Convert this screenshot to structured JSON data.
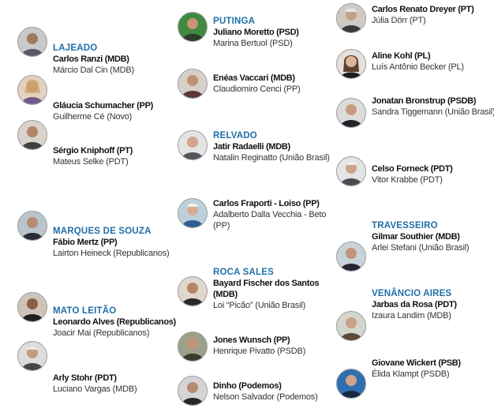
{
  "columns": [
    {
      "entries": [
        {
          "city": "LAJEADO",
          "mayor": "Carlos Ranzi (MDB)",
          "vice": "Márcio Dal Cin (MDB)"
        },
        {
          "city": "",
          "mayor": "Gláucia Schumacher (PP)",
          "vice": "Guilherme Cé (Novo)"
        },
        {
          "city": "",
          "mayor": "Sérgio Kniphoff (PT)",
          "vice": "Mateus Selke (PDT)"
        },
        {
          "city": "MARQUES DE SOUZA",
          "mayor": "Fábio Mertz (PP)",
          "vice": "Lairton Heineck (Republicanos)"
        },
        {
          "city": "MATO LEITÃO",
          "mayor": "Leonardo Alves (Republicanos)",
          "vice": "Joacir Mai (Republicanos)"
        },
        {
          "city": "",
          "mayor": "Arly Stohr (PDT)",
          "vice": "Luciano Vargas (MDB)"
        }
      ]
    },
    {
      "entries": [
        {
          "city": "PUTINGA",
          "mayor": "Juliano Moretto (PSD)",
          "vice": "Marina Bertuol (PSD)"
        },
        {
          "city": "",
          "mayor": "Enéas Vaccari (MDB)",
          "vice": "Claudiomiro Cenci (PP)"
        },
        {
          "city": "RELVADO",
          "mayor": "Jatir Radaelli (MDB)",
          "vice": "Natalin Reginatto (União Brasil)"
        },
        {
          "city": "",
          "mayor": "Carlos Fraporti - Loiso (PP)",
          "vice": "Adalberto Dalla Vecchia - Beto (PP)"
        },
        {
          "city": "ROCA SALES",
          "mayor": "Bayard Fischer dos Santos (MDB)",
          "vice": "Loi “Picão” (União Brasil)"
        },
        {
          "city": "",
          "mayor": "Jones Wunsch (PP)",
          "vice": "Henrique Pivatto (PSDB)"
        },
        {
          "city": "",
          "mayor": "Dinho (Podemos)",
          "vice": "Nelson Salvador (Podemos)"
        }
      ]
    },
    {
      "entries": [
        {
          "city": "",
          "mayor": "Carlos Renato Dreyer (PT)",
          "vice": "Júlia Dörr (PT)"
        },
        {
          "city": "",
          "mayor": "Aline Kohl (PL)",
          "vice": "Luís Antônio Becker (PL)"
        },
        {
          "city": "",
          "mayor": "Jonatan Bronstrup (PSDB)",
          "vice": "Sandra Tiggemann (União Brasil)"
        },
        {
          "city": "",
          "mayor": "Celso Forneck (PDT)",
          "vice": "Vitor Krabbe (PDT)"
        },
        {
          "city": "TRAVESSEIRO",
          "mayor": "Gilmar Southier (MDB)",
          "vice": "Arlei Stefani (União Brasil)"
        },
        {
          "city": "VENÂNCIO AIRES",
          "mayor": "Jarbas da Rosa (PDT)",
          "vice": "Izaura Landim (MDB)"
        },
        {
          "city": "",
          "mayor": "Giovane Wickert (PSB)",
          "vice": "Élida Klampt (PSDB)"
        }
      ]
    }
  ]
}
